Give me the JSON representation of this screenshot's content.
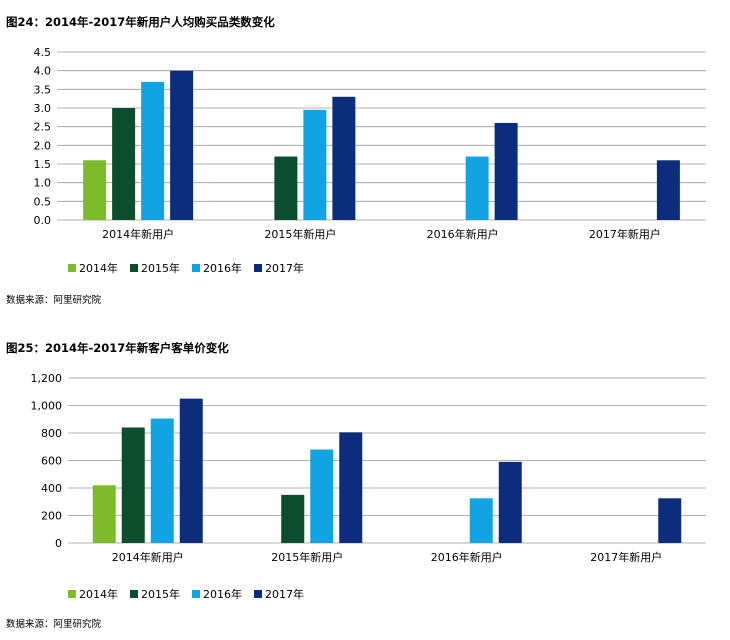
{
  "colors": {
    "s2014": "#7dbb2b",
    "s2015": "#0b4d2c",
    "s2016": "#12a3e2",
    "s2017": "#0b2d7c",
    "grid": "#9a9a9a"
  },
  "chart_data": [
    {
      "type": "bar",
      "title": "图24：2014年-2017年新用户人均购买品类数变化",
      "source": "数据来源：阿里研究院",
      "categories": [
        "2014年新用户",
        "2015年新用户",
        "2016年新用户",
        "2017年新用户"
      ],
      "series": [
        {
          "name": "2014年",
          "values": [
            1.6,
            null,
            null,
            null
          ]
        },
        {
          "name": "2015年",
          "values": [
            3.0,
            1.7,
            null,
            null
          ]
        },
        {
          "name": "2016年",
          "values": [
            3.7,
            2.95,
            1.7,
            null
          ]
        },
        {
          "name": "2017年",
          "values": [
            4.0,
            3.3,
            2.6,
            1.6
          ]
        }
      ],
      "ylim": [
        0,
        4.5
      ],
      "yticks": [
        "0.0",
        "0.5",
        "1.0",
        "1.5",
        "2.0",
        "2.5",
        "3.0",
        "3.5",
        "4.0",
        "4.5"
      ],
      "grid": true,
      "legend": "bottom-left"
    },
    {
      "type": "bar",
      "title": "图25：2014年-2017年新客户客单价变化",
      "source": "数据来源：阿里研究院",
      "categories": [
        "2014年新用户",
        "2015年新用户",
        "2016年新用户",
        "2017年新用户"
      ],
      "series": [
        {
          "name": "2014年",
          "values": [
            420,
            null,
            null,
            null
          ]
        },
        {
          "name": "2015年",
          "values": [
            840,
            350,
            null,
            null
          ]
        },
        {
          "name": "2016年",
          "values": [
            905,
            680,
            325,
            null
          ]
        },
        {
          "name": "2017年",
          "values": [
            1050,
            805,
            590,
            325
          ]
        }
      ],
      "ylim": [
        0,
        1200
      ],
      "yticks": [
        "0",
        "200",
        "400",
        "600",
        "800",
        "1,000",
        "1,200"
      ],
      "grid": true,
      "legend": "bottom-left"
    }
  ]
}
